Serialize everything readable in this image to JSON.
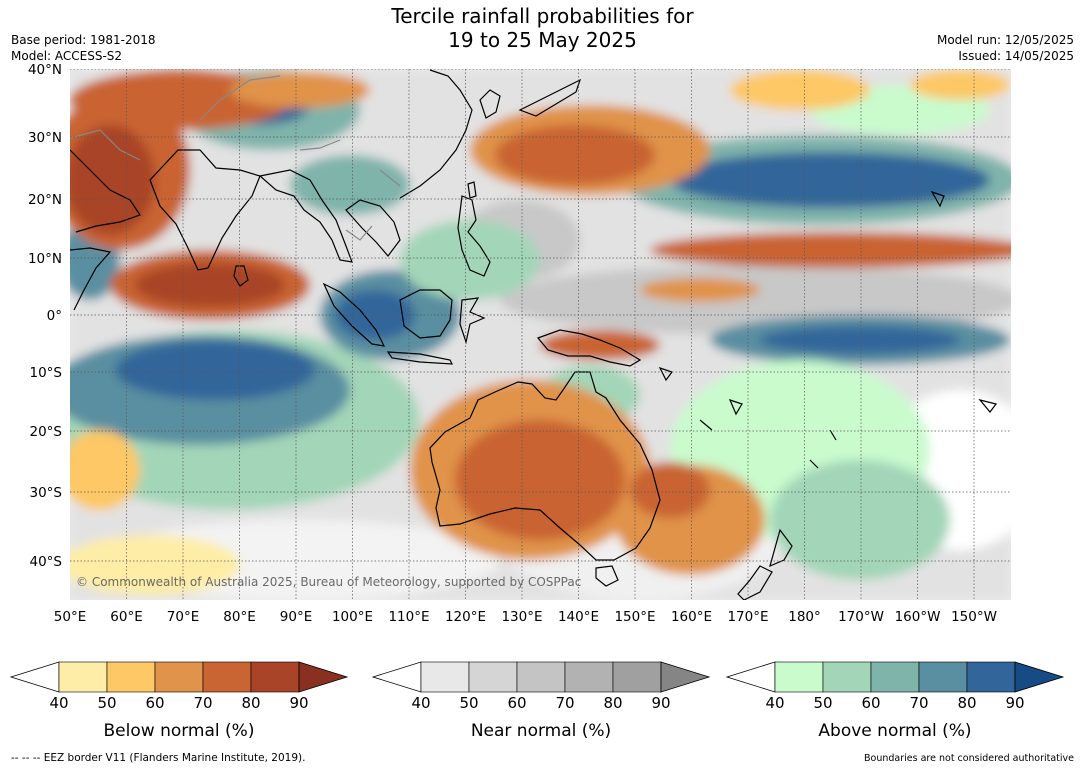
{
  "header": {
    "title_line1": "Tercile rainfall probabilities for",
    "title_line2": "19 to 25 May 2025",
    "base_period": "Base period: 1981-2018",
    "model": "Model: ACCESS-S2",
    "model_run": "Model run: 12/05/2025",
    "issued": "Issued: 14/05/2025"
  },
  "map": {
    "lat_labels": [
      "40°N",
      "30°N",
      "20°N",
      "10°N",
      "0°",
      "10°S",
      "20°S",
      "30°S",
      "40°S"
    ],
    "lon_labels": [
      "50°E",
      "60°E",
      "70°E",
      "80°E",
      "90°E",
      "100°E",
      "110°E",
      "120°E",
      "130°E",
      "140°E",
      "150°E",
      "160°E",
      "170°E",
      "180°",
      "170°W",
      "160°W",
      "150°W"
    ],
    "credit": "© Commonwealth of Australia 2025, Bureau of Meteorology, supported by COSPPac",
    "colors": {
      "coast": "#000000",
      "eez_border": "#888888",
      "grid": "#555555"
    },
    "regions": [
      {
        "category": "below",
        "level": 80,
        "label": "Arabian Sea"
      },
      {
        "category": "below",
        "level": 80,
        "label": "North Indian Ocean"
      },
      {
        "category": "below",
        "level": 70,
        "label": "East China Sea / Philippine Sea"
      },
      {
        "category": "below",
        "level": 70,
        "label": "Australia interior"
      },
      {
        "category": "below",
        "level": 70,
        "label": "Tasman Sea"
      },
      {
        "category": "above",
        "level": 80,
        "label": "Maritime Continent"
      },
      {
        "category": "above",
        "level": 70,
        "label": "South Indian Ocean"
      },
      {
        "category": "above",
        "level": 80,
        "label": "North Pacific"
      },
      {
        "category": "above",
        "level": 70,
        "label": "Tibet / Bay of Bengal"
      },
      {
        "category": "near",
        "level": 50,
        "label": "Equatorial Pacific"
      },
      {
        "category": "below",
        "level": 70,
        "label": "Equatorial Pacific north band"
      },
      {
        "category": "above",
        "level": 80,
        "label": "Central Pacific south band"
      }
    ]
  },
  "colorbars": [
    {
      "name": "below",
      "title": "Below normal (%)",
      "ticks": [
        "40",
        "50",
        "60",
        "70",
        "80",
        "90"
      ],
      "colors": [
        "#ffffff",
        "#fdeda6",
        "#fdc865",
        "#e0934a",
        "#c96433",
        "#a94428",
        "#8a3020"
      ]
    },
    {
      "name": "near",
      "title": "Near normal (%)",
      "ticks": [
        "40",
        "50",
        "60",
        "70",
        "80",
        "90"
      ],
      "colors": [
        "#ffffff",
        "#e8e8e8",
        "#d5d5d5",
        "#c4c4c4",
        "#b2b2b2",
        "#a0a0a0",
        "#858585"
      ]
    },
    {
      "name": "above",
      "title": "Above normal (%)",
      "ticks": [
        "40",
        "50",
        "60",
        "70",
        "80",
        "90"
      ],
      "colors": [
        "#ffffff",
        "#c9fbcd",
        "#a3d6b8",
        "#7fb4ab",
        "#5a8fa1",
        "#32669a",
        "#164b86"
      ]
    }
  ],
  "footer": {
    "eez_note": "--  --  -- EEZ border V11 (Flanders Marine Institute, 2019).",
    "disclaimer": "Boundaries are not considered authoritative"
  }
}
